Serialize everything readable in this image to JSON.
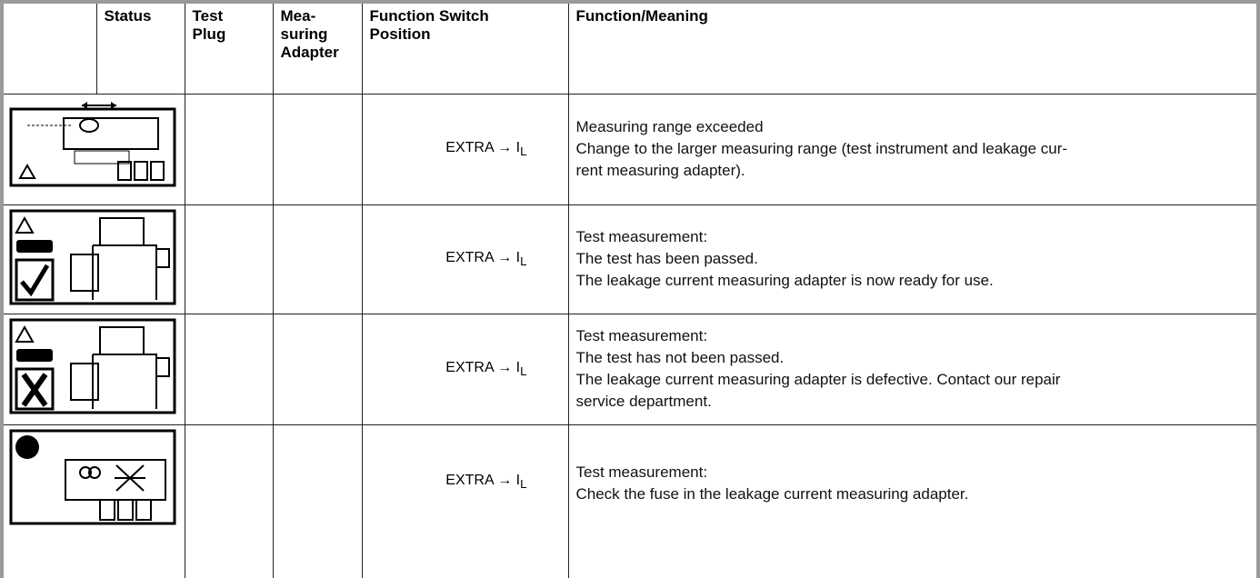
{
  "table": {
    "headers": [
      [
        "Status"
      ],
      [
        "Test",
        "Plug"
      ],
      [
        "Mea-",
        "suring",
        "Adapter"
      ],
      [
        "Function Switch",
        "Position"
      ],
      [
        "Function/Meaning"
      ]
    ],
    "rows": [
      {
        "switch": {
          "text": "EXTRA → I",
          "sub": "L"
        },
        "meaning": [
          "Measuring range exceeded",
          "Change to the larger measuring range (test instrument and leakage cur-",
          "rent measuring adapter)."
        ]
      },
      {
        "switch": {
          "text": "EXTRA → I",
          "sub": "L"
        },
        "meaning": [
          "Test measurement:",
          "The test has been passed.",
          "The leakage current measuring adapter is now ready for use."
        ]
      },
      {
        "switch": {
          "text": "EXTRA → I",
          "sub": "L"
        },
        "meaning": [
          "Test measurement:",
          "The test has not been passed.",
          "The leakage current measuring adapter is defective. Contact our repair",
          "service department."
        ]
      },
      {
        "switch": {
          "text": "EXTRA → I",
          "sub": "L"
        },
        "meaning": [
          "Test measurement:",
          "Check the fuse in the leakage current measuring adapter."
        ]
      }
    ]
  }
}
